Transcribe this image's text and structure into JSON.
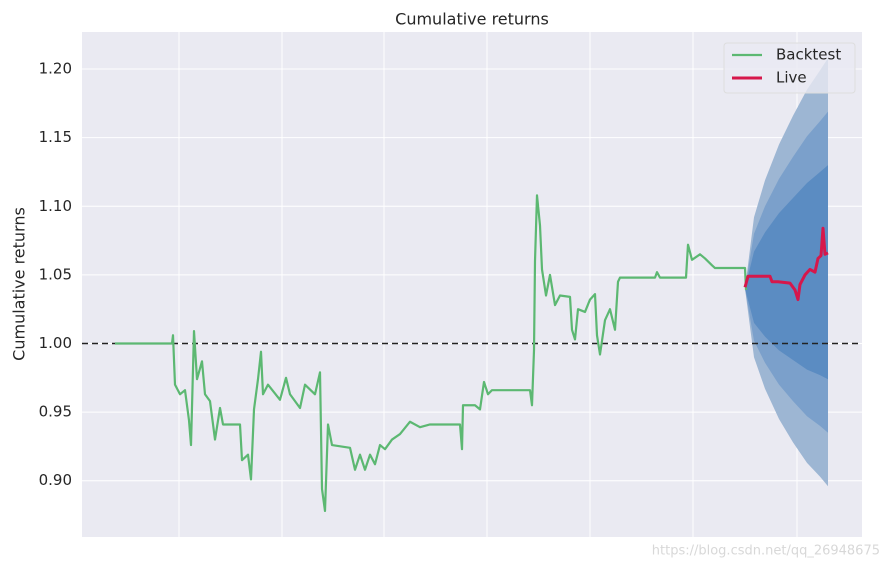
{
  "chart_data": {
    "type": "line",
    "title": "Cumulative returns",
    "ylabel": "Cumulative returns",
    "watermark": "https://blog.csdn.net/qq_26948675",
    "xlim": [
      0,
      780
    ],
    "xticks": [
      97,
      200,
      302,
      405,
      508,
      611,
      715
    ],
    "ylim": [
      0.859,
      1.227
    ],
    "yticks": [
      {
        "value": 0.9,
        "label": "0.90"
      },
      {
        "value": 0.95,
        "label": "0.95"
      },
      {
        "value": 1.0,
        "label": "1.00"
      },
      {
        "value": 1.05,
        "label": "1.05"
      },
      {
        "value": 1.1,
        "label": "1.10"
      },
      {
        "value": 1.15,
        "label": "1.15"
      },
      {
        "value": 1.2,
        "label": "1.20"
      }
    ],
    "grid": true,
    "baseline": 1.0,
    "legend": "upper right",
    "bands": [
      {
        "color": "#9db6d3",
        "x": [
          663,
          672,
          683,
          697,
          711,
          725,
          738,
          746
        ],
        "upper": [
          1.04,
          1.092,
          1.119,
          1.145,
          1.166,
          1.185,
          1.199,
          1.208
        ],
        "lower": [
          1.04,
          0.99,
          0.967,
          0.945,
          0.928,
          0.913,
          0.903,
          0.896
        ]
      },
      {
        "color": "#7ba0cb",
        "x": [
          663,
          672,
          683,
          697,
          711,
          725,
          738,
          746
        ],
        "upper": [
          1.04,
          1.08,
          1.1,
          1.12,
          1.136,
          1.151,
          1.162,
          1.169
        ],
        "lower": [
          1.04,
          1.002,
          0.986,
          0.97,
          0.958,
          0.947,
          0.94,
          0.935
        ]
      },
      {
        "color": "#5b8cc2",
        "x": [
          663,
          672,
          683,
          697,
          711,
          725,
          738,
          746
        ],
        "upper": [
          1.04,
          1.067,
          1.081,
          1.095,
          1.106,
          1.117,
          1.125,
          1.13
        ],
        "lower": [
          1.04,
          1.015,
          1.005,
          0.995,
          0.988,
          0.981,
          0.977,
          0.974
        ]
      }
    ],
    "series": [
      {
        "name": "Backtest",
        "color": "#5cb872",
        "width": 2.2,
        "x": [
          33,
          90,
          91,
          93,
          98,
          103,
          107,
          109,
          112,
          115,
          120,
          123,
          128,
          133,
          138,
          141,
          158,
          160,
          166,
          169,
          172,
          176,
          179,
          181,
          186,
          198,
          204,
          208,
          218,
          223,
          233,
          238,
          240,
          243,
          246,
          250,
          268,
          273,
          278,
          283,
          288,
          293,
          298,
          303,
          310,
          318,
          328,
          338,
          348,
          378,
          380,
          381,
          393,
          398,
          402,
          406,
          410,
          448,
          450,
          452,
          453,
          455,
          458,
          460,
          464,
          468,
          473,
          478,
          488,
          490,
          493,
          496,
          503,
          508,
          513,
          515,
          518,
          523,
          528,
          533,
          536,
          538,
          573,
          575,
          578,
          604,
          606,
          610,
          618,
          623,
          630,
          633,
          663,
          664
        ],
        "values": [
          1.0,
          1.0,
          1.006,
          0.97,
          0.963,
          0.966,
          0.944,
          0.926,
          1.009,
          0.974,
          0.987,
          0.963,
          0.958,
          0.93,
          0.953,
          0.941,
          0.941,
          0.915,
          0.919,
          0.901,
          0.952,
          0.974,
          0.994,
          0.963,
          0.97,
          0.959,
          0.975,
          0.963,
          0.953,
          0.97,
          0.963,
          0.979,
          0.894,
          0.878,
          0.941,
          0.926,
          0.924,
          0.908,
          0.919,
          0.908,
          0.919,
          0.912,
          0.926,
          0.923,
          0.93,
          0.934,
          0.943,
          0.939,
          0.941,
          0.941,
          0.923,
          0.955,
          0.955,
          0.952,
          0.972,
          0.963,
          0.966,
          0.966,
          0.955,
          0.995,
          1.06,
          1.108,
          1.086,
          1.054,
          1.035,
          1.05,
          1.028,
          1.035,
          1.034,
          1.01,
          1.003,
          1.025,
          1.023,
          1.032,
          1.036,
          1.006,
          0.992,
          1.017,
          1.025,
          1.01,
          1.045,
          1.048,
          1.048,
          1.052,
          1.048,
          1.048,
          1.072,
          1.061,
          1.065,
          1.062,
          1.057,
          1.055,
          1.055,
          1.039
        ]
      },
      {
        "name": "Live",
        "color": "#d6174b",
        "width": 3,
        "x": [
          663,
          666,
          688,
          690,
          696,
          708,
          713,
          716,
          718,
          723,
          728,
          733,
          736,
          739,
          741,
          743,
          746
        ],
        "values": [
          1.041,
          1.049,
          1.049,
          1.045,
          1.045,
          1.044,
          1.039,
          1.032,
          1.043,
          1.05,
          1.054,
          1.052,
          1.062,
          1.064,
          1.084,
          1.065,
          1.066
        ]
      }
    ]
  }
}
